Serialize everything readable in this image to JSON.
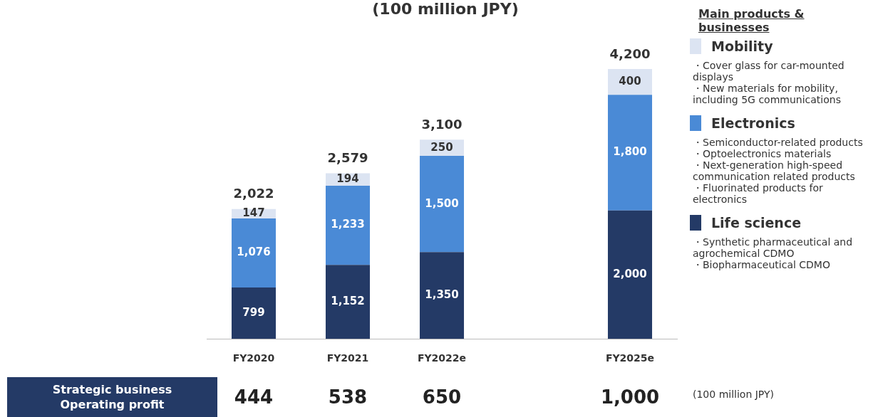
{
  "chart_data": [
    {
      "type": "bar",
      "title": "(100 million JPY)",
      "categories": [
        "FY2020",
        "FY2021",
        "FY2022e",
        null,
        "FY2025e"
      ],
      "stacked": true,
      "legend": "right",
      "legend_title": "Main products & businesses",
      "series": [
        {
          "name": "Life science",
          "color": "#243a66",
          "values": [
            799,
            1152,
            1350,
            null,
            2000
          ],
          "value_labels": [
            "799",
            "1,152",
            "1,350",
            null,
            "2,000"
          ]
        },
        {
          "name": "Electronics",
          "color": "#4a8ad6",
          "values": [
            1076,
            1233,
            1500,
            null,
            1800
          ],
          "value_labels": [
            "1,076",
            "1,233",
            "1,500",
            null,
            "1,800"
          ]
        },
        {
          "name": "Mobility",
          "color": "#dce4f2",
          "values": [
            147,
            194,
            250,
            null,
            400
          ],
          "value_labels": [
            "147",
            "194",
            "250",
            null,
            "400"
          ]
        }
      ],
      "totals": [
        "2,022",
        "2,579",
        "3,100",
        null,
        "4,200"
      ],
      "annotations": [
        "・Synthetic pharmaceutical and agrochemical CDMO\n・Biopharmaceutical CDMO",
        "・Semiconductor-related products\n・Optoelectronics materials\n・Next-generation high-speed communication related products\n・Fluorinated products for electronics",
        "・Cover glass for car-mounted displays\n・New materials for mobility, including 5G communications"
      ]
    },
    {
      "type": "other",
      "title": "Strategic business Operating profit",
      "annotations": [
        "444",
        "538",
        "650",
        "1,000",
        "(100 million JPY)"
      ]
    }
  ]
}
